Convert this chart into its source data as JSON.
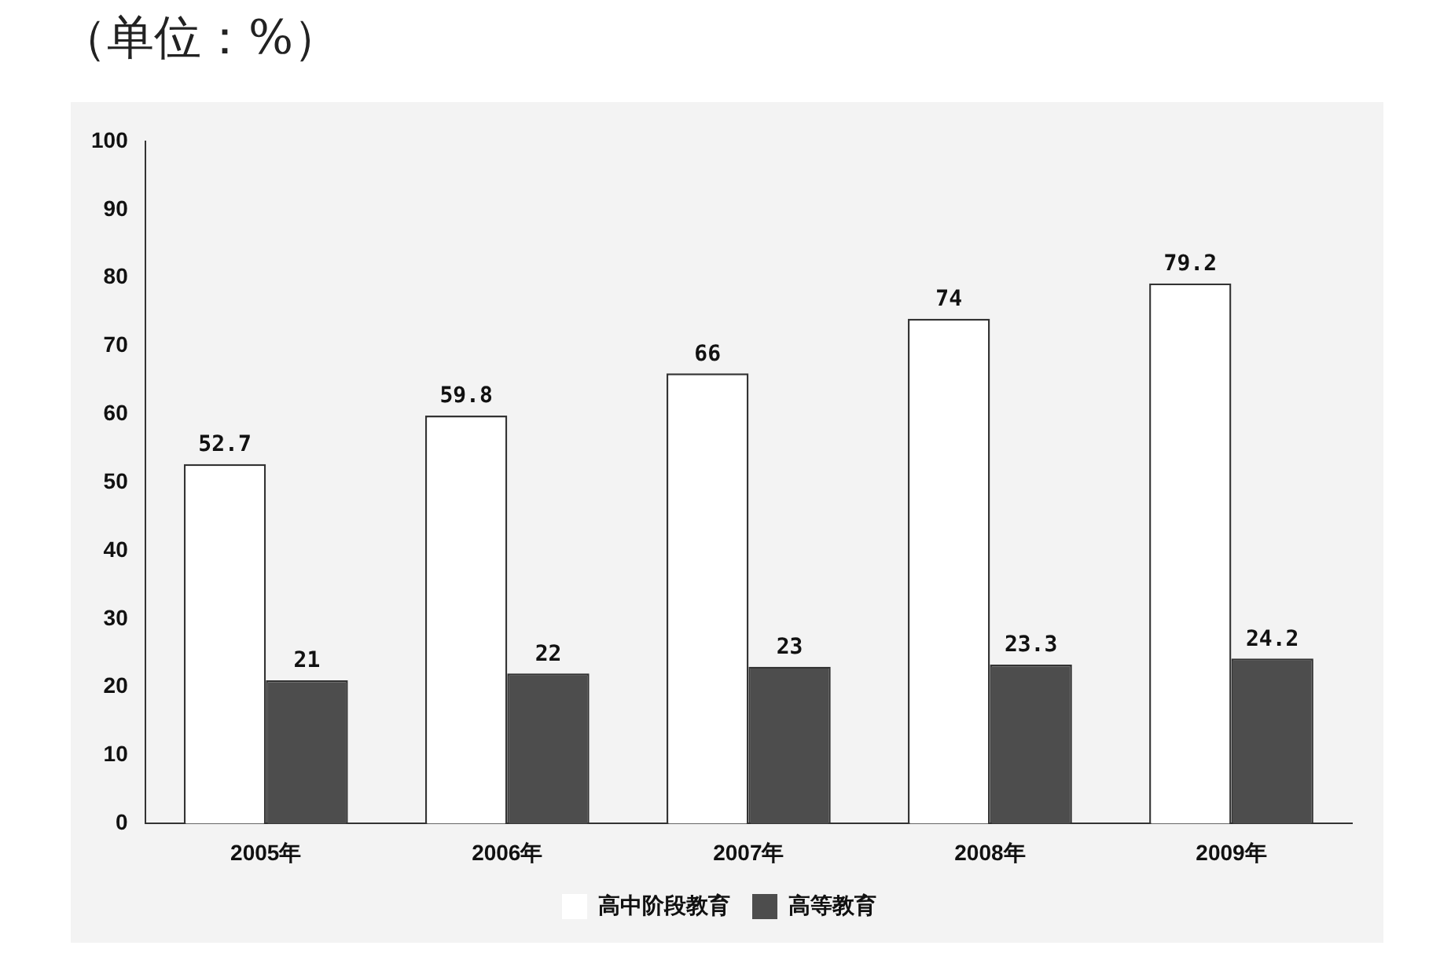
{
  "chart_data": {
    "type": "bar",
    "title": "（单位：%）",
    "categories": [
      "2005年",
      "2006年",
      "2007年",
      "2008年",
      "2009年"
    ],
    "series": [
      {
        "name": "高中阶段教育",
        "color": "#ffffff",
        "values": [
          52.7,
          59.8,
          66,
          74,
          79.2
        ]
      },
      {
        "name": "高等教育",
        "color": "#4d4d4d",
        "values": [
          21,
          22,
          23,
          23.3,
          24.2
        ]
      }
    ],
    "ylim": [
      0,
      100
    ],
    "yticks": [
      0,
      10,
      20,
      30,
      40,
      50,
      60,
      70,
      80,
      90,
      100
    ],
    "data_labels": true,
    "legend": "bottom"
  }
}
